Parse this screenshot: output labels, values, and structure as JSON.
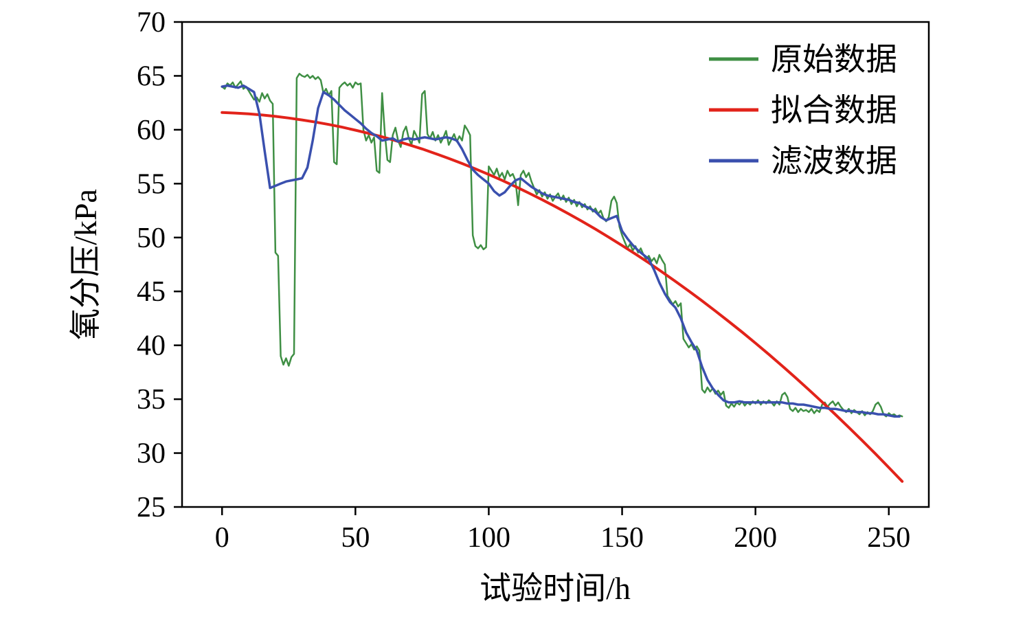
{
  "axes": {
    "x_label": "试验时间/h",
    "y_label": "氧分压/kPa"
  },
  "legend": {
    "items": [
      {
        "label": "原始数据",
        "color": "#3f8f44"
      },
      {
        "label": "拟合数据",
        "color": "#e2231a"
      },
      {
        "label": "滤波数据",
        "color": "#3a50ae"
      }
    ]
  },
  "chart_data": {
    "type": "line",
    "title": "",
    "xlabel": "试验时间/h",
    "ylabel": "氧分压/kPa",
    "xlim": [
      -15,
      265
    ],
    "ylim": [
      25,
      70
    ],
    "x_ticks": [
      0,
      50,
      100,
      150,
      200,
      250
    ],
    "y_ticks": [
      25,
      30,
      35,
      40,
      45,
      50,
      55,
      60,
      65,
      70
    ],
    "grid": false,
    "legend_position": "upper right",
    "series": [
      {
        "name": "原始数据",
        "color": "#3f8f44",
        "width": 2.5,
        "x_start": 0,
        "x_step": 1,
        "values": [
          64.0,
          63.8,
          64.3,
          64.1,
          64.4,
          63.9,
          64.2,
          64.5,
          63.8,
          64.0,
          63.6,
          63.2,
          62.8,
          63.0,
          62.6,
          63.4,
          62.9,
          63.3,
          62.7,
          62.4,
          48.6,
          48.3,
          39.0,
          38.2,
          38.8,
          38.1,
          38.9,
          39.2,
          64.8,
          65.2,
          65.0,
          64.9,
          65.1,
          64.8,
          65.0,
          64.7,
          64.9,
          64.6,
          63.4,
          63.8,
          63.2,
          63.6,
          57.0,
          56.8,
          63.9,
          64.2,
          64.4,
          64.1,
          64.3,
          63.9,
          64.4,
          64.2,
          64.3,
          60.0,
          59.0,
          59.5,
          58.8,
          59.3,
          56.2,
          56.0,
          63.4,
          59.8,
          57.2,
          57.0,
          59.5,
          60.2,
          59.0,
          58.4,
          59.8,
          60.3,
          59.2,
          58.6,
          59.9,
          59.4,
          58.8,
          63.3,
          63.6,
          59.6,
          59.2,
          59.8,
          59.0,
          59.5,
          58.8,
          59.3,
          59.9,
          58.6,
          59.1,
          59.6,
          58.9,
          59.4,
          59.0,
          60.4,
          60.0,
          59.5,
          50.2,
          49.2,
          49.0,
          49.3,
          48.9,
          49.1,
          56.6,
          56.2,
          55.8,
          56.4,
          55.6,
          56.0,
          55.4,
          56.2,
          55.7,
          55.9,
          55.3,
          53.0,
          55.8,
          56.2,
          55.6,
          56.0,
          55.2,
          54.6,
          54.0,
          54.4,
          53.8,
          54.2,
          53.6,
          54.0,
          53.4,
          53.8,
          54.1,
          53.5,
          53.9,
          53.3,
          53.7,
          53.1,
          53.5,
          52.9,
          53.3,
          52.8,
          53.1,
          52.6,
          52.9,
          52.4,
          52.7,
          52.2,
          52.5,
          51.8,
          51.5,
          51.9,
          53.4,
          53.8,
          53.2,
          51.0,
          50.2,
          49.6,
          49.0,
          49.4,
          48.8,
          49.2,
          48.6,
          49.0,
          48.4,
          48.0,
          48.3,
          47.8,
          48.1,
          47.6,
          48.4,
          47.9,
          47.5,
          44.6,
          44.2,
          43.8,
          44.1,
          43.6,
          43.9,
          40.6,
          40.2,
          39.8,
          40.1,
          39.6,
          39.9,
          39.5,
          35.9,
          35.6,
          36.1,
          35.7,
          36.0,
          35.5,
          35.8,
          35.4,
          35.7,
          34.4,
          34.2,
          34.6,
          34.3,
          34.7,
          34.5,
          34.8,
          34.4,
          34.7,
          34.5,
          34.8,
          34.6,
          34.9,
          34.5,
          34.8,
          34.6,
          34.9,
          34.7,
          34.4,
          34.8,
          34.5,
          35.4,
          35.6,
          35.2,
          34.1,
          33.9,
          34.2,
          33.8,
          34.1,
          33.9,
          34.0,
          33.8,
          34.1,
          33.7,
          34.0,
          33.8,
          34.5,
          34.7,
          34.3,
          34.6,
          34.8,
          34.4,
          34.7,
          34.3,
          34.0,
          33.8,
          34.1,
          33.7,
          34.0,
          33.8,
          33.6,
          33.9,
          33.5,
          33.8,
          33.6,
          33.9,
          34.5,
          34.7,
          34.3,
          33.6,
          33.4,
          33.7,
          33.5,
          33.6,
          33.4,
          33.5,
          33.4
        ]
      },
      {
        "name": "拟合数据",
        "color": "#e2231a",
        "width": 4,
        "x_start": 0,
        "x_step": 5,
        "values": [
          61.6,
          61.55,
          61.47,
          61.37,
          61.24,
          61.09,
          60.91,
          60.71,
          60.49,
          60.24,
          59.96,
          59.66,
          59.34,
          58.99,
          58.61,
          58.22,
          57.79,
          57.34,
          56.87,
          56.37,
          55.85,
          55.3,
          54.73,
          54.13,
          53.51,
          52.87,
          52.19,
          51.5,
          50.78,
          50.03,
          49.26,
          48.47,
          47.65,
          46.8,
          45.93,
          45.04,
          44.12,
          43.18,
          42.21,
          41.22,
          40.2,
          39.16,
          38.09,
          37.0,
          35.88,
          34.74,
          33.57,
          32.38,
          31.17,
          29.93,
          28.66,
          27.37
        ]
      },
      {
        "name": "滤波数据",
        "color": "#3a50ae",
        "width": 3.5,
        "x_start": 0,
        "x_step": 2,
        "values": [
          64.0,
          64.1,
          64.0,
          63.9,
          64.1,
          63.8,
          63.5,
          61.5,
          58.0,
          54.6,
          54.8,
          55.0,
          55.2,
          55.3,
          55.4,
          55.5,
          56.5,
          59.0,
          62.0,
          63.5,
          63.2,
          62.8,
          62.3,
          61.8,
          61.4,
          61.0,
          60.6,
          60.1,
          59.7,
          59.4,
          59.0,
          59.1,
          59.2,
          58.9,
          59.1,
          59.2,
          59.1,
          59.2,
          59.3,
          59.2,
          59.1,
          59.2,
          59.3,
          59.2,
          59.0,
          58.2,
          57.2,
          56.3,
          55.8,
          55.4,
          55.0,
          54.3,
          53.9,
          54.2,
          54.8,
          55.3,
          55.5,
          55.1,
          54.7,
          54.4,
          54.1,
          53.9,
          53.8,
          53.7,
          53.6,
          53.5,
          53.3,
          53.2,
          52.9,
          52.7,
          52.4,
          51.9,
          51.6,
          51.8,
          52.0,
          50.6,
          49.9,
          49.3,
          48.8,
          48.4,
          48.0,
          47.0,
          45.8,
          44.8,
          44.0,
          43.5,
          42.5,
          41.2,
          40.3,
          39.5,
          38.0,
          36.8,
          36.0,
          35.4,
          34.9,
          34.7,
          34.7,
          34.8,
          34.7,
          34.7,
          34.7,
          34.7,
          34.7,
          34.7,
          34.7,
          34.7,
          34.6,
          34.6,
          34.5,
          34.5,
          34.4,
          34.3,
          34.2,
          34.2,
          34.1,
          34.1,
          34.0,
          33.9,
          33.9,
          33.8,
          33.8,
          33.7,
          33.7,
          33.6,
          33.6,
          33.5,
          33.4,
          33.4
        ]
      }
    ]
  }
}
